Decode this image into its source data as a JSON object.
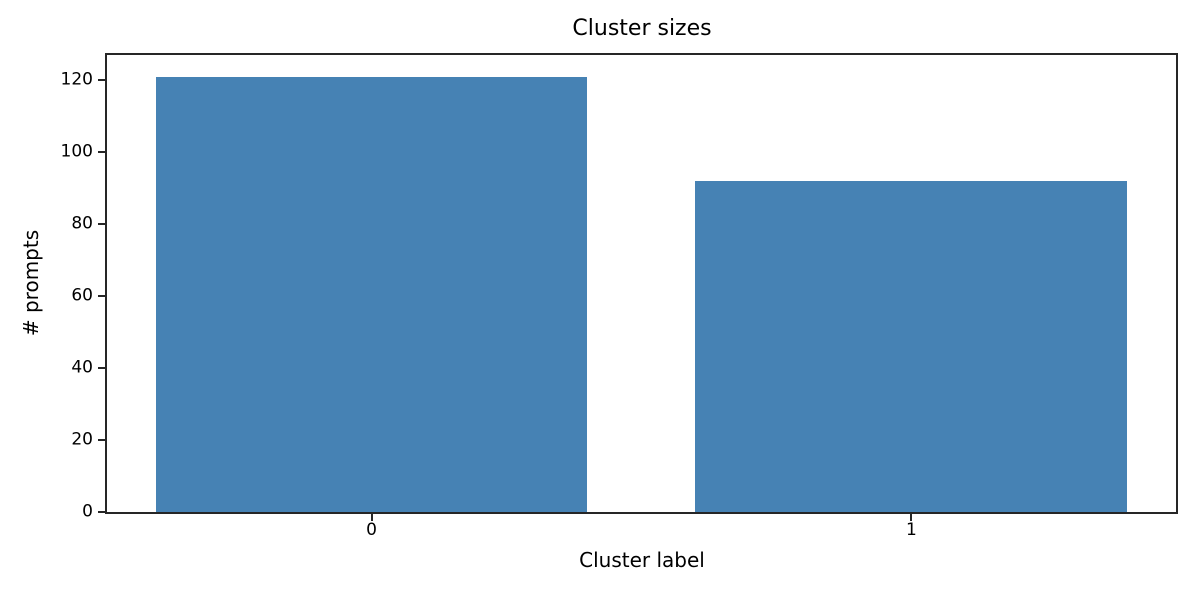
{
  "chart_data": {
    "type": "bar",
    "title": "Cluster sizes",
    "xlabel": "Cluster label",
    "ylabel": "# prompts",
    "categories": [
      "0",
      "1"
    ],
    "values": [
      121,
      92
    ],
    "yticks": [
      0,
      20,
      40,
      60,
      80,
      100,
      120
    ],
    "ylim": [
      0,
      127
    ],
    "xlim": [
      -0.49,
      1.49
    ],
    "bar_width": 0.8,
    "bar_color": "#4682B4",
    "axis_color": "#262626",
    "text_color": "#000000",
    "grid": false
  }
}
